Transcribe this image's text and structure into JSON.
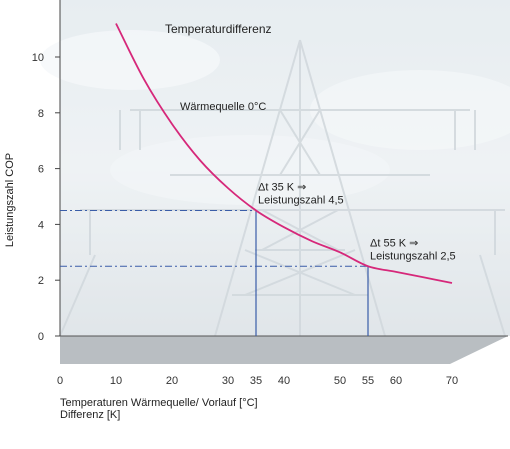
{
  "chart_data": {
    "type": "line",
    "title": "Temperaturdifferenz",
    "ylabel": "Leistungszahl COP",
    "xlabel_line1": "Temperaturen Wärmequelle/ Vorlauf [°C]",
    "xlabel_line2": "Differenz [K]",
    "xlim": [
      0,
      70
    ],
    "ylim": [
      0,
      12
    ],
    "xticks": [
      0,
      10,
      20,
      30,
      35,
      40,
      50,
      55,
      60,
      70
    ],
    "xticks_highlight": [
      35,
      55
    ],
    "yticks": [
      0,
      2,
      4,
      6,
      8,
      10
    ],
    "grid": false,
    "series": [
      {
        "name": "Wärmequelle 0°C",
        "color": "#d6287a",
        "x": [
          10,
          15,
          20,
          25,
          30,
          35,
          40,
          45,
          50,
          55,
          60,
          65,
          70
        ],
        "y": [
          11.2,
          9.2,
          7.6,
          6.3,
          5.3,
          4.5,
          3.9,
          3.4,
          3.0,
          2.5,
          2.3,
          2.1,
          1.9
        ]
      }
    ],
    "annotations": [
      {
        "x": 35,
        "y": 4.5,
        "line1": "Δt 35 K ⇒",
        "line2": "Leistungszahl 4,5"
      },
      {
        "x": 55,
        "y": 2.5,
        "line1": "Δt 55 K ⇒",
        "line2": "Leistungszahl 2,5"
      }
    ],
    "colors": {
      "accent": "#d6287a",
      "guide": "#3a5da8",
      "highlight_tick": "#2aa7c9"
    }
  }
}
